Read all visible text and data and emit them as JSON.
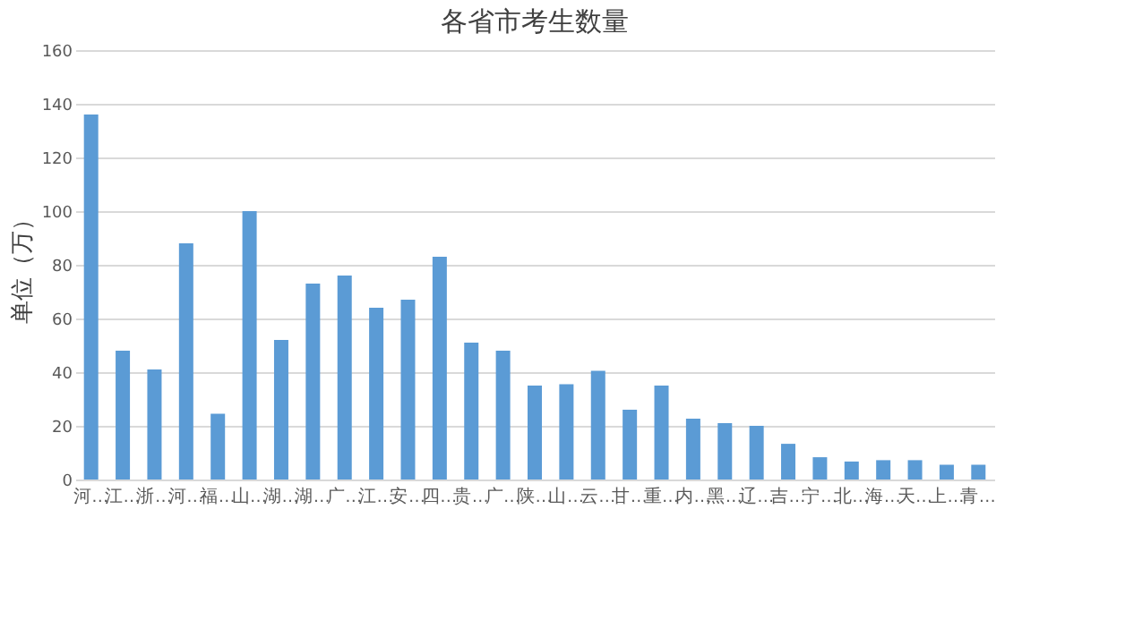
{
  "chart_data": {
    "type": "bar",
    "title": "各省市考生数量",
    "ylabel": "单位（万）",
    "categories": [
      "河…",
      "江…",
      "浙…",
      "河…",
      "福…",
      "山…",
      "湖…",
      "湖…",
      "广…",
      "江…",
      "安…",
      "四…",
      "贵…",
      "广…",
      "陕…",
      "山…",
      "云…",
      "甘…",
      "重…",
      "内…",
      "黑…",
      "辽…",
      "吉…",
      "宁…",
      "北…",
      "海…",
      "天…",
      "上…",
      "青…"
    ],
    "values": [
      136,
      48,
      41,
      88,
      24.5,
      100,
      52,
      73,
      76,
      64,
      67,
      83,
      51,
      48,
      35,
      35.5,
      40.5,
      26,
      35,
      22.7,
      21,
      20,
      13.3,
      8.3,
      6.7,
      7.2,
      7.2,
      5.5,
      5.5
    ],
    "color": "#5b9bd5",
    "ylim": [
      0,
      160
    ],
    "yticks": [
      0,
      20,
      40,
      60,
      80,
      100,
      120,
      140,
      160
    ],
    "grid": "y"
  }
}
